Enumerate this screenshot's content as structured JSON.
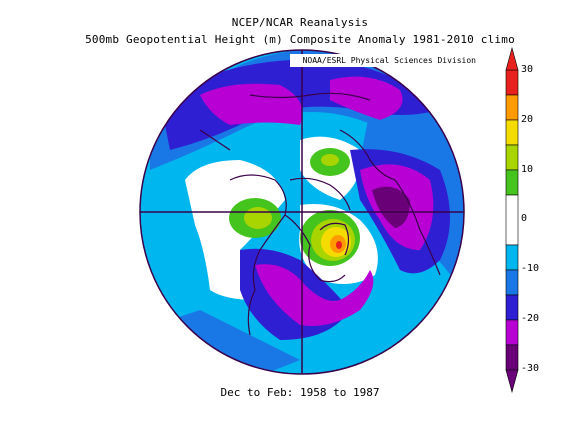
{
  "header": {
    "line1": "NCEP/NCAR Reanalysis",
    "line2": "500mb Geopotential Height (m) Composite Anomaly 1981-2010 climo"
  },
  "credit": "NOAA/ESRL Physical Sciences Division",
  "period": "Dec to Feb: 1958 to 1987",
  "map": {
    "projection": "north-polar-stereographic",
    "boundary_color": "#3a004a",
    "crosshair_color": "#3a004a",
    "coastline_color": "#3a004a"
  },
  "colorbar": {
    "ticks": [
      "30",
      "20",
      "10",
      "0",
      "-10",
      "-20",
      "-30"
    ],
    "levels": [
      {
        "from": 25,
        "to": 30,
        "color": "#e8201e"
      },
      {
        "from": 20,
        "to": 25,
        "color": "#ff9a00"
      },
      {
        "from": 15,
        "to": 20,
        "color": "#f4dc00"
      },
      {
        "from": 10,
        "to": 15,
        "color": "#a8d400"
      },
      {
        "from": 5,
        "to": 10,
        "color": "#44c41c"
      },
      {
        "from": -5,
        "to": 5,
        "color": "#ffffff"
      },
      {
        "from": -10,
        "to": -5,
        "color": "#00b6ee"
      },
      {
        "from": -15,
        "to": -10,
        "color": "#1a78e6"
      },
      {
        "from": -20,
        "to": -15,
        "color": "#2f1fd2"
      },
      {
        "from": -25,
        "to": -20,
        "color": "#b800d4"
      },
      {
        "from": -30,
        "to": -25,
        "color": "#6a0078"
      }
    ]
  }
}
